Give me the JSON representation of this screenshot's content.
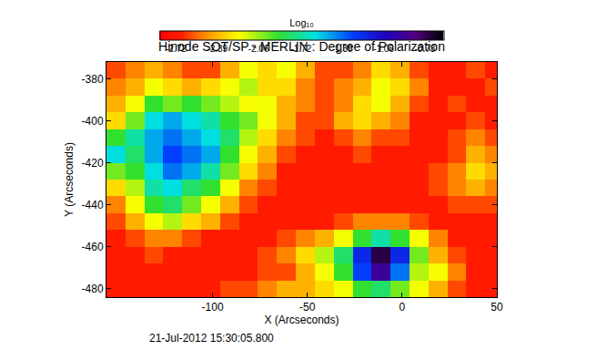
{
  "chart_data": {
    "type": "heatmap",
    "title": "Hinode SOT/SP - MERLIN : Degree of Polarization",
    "x_label": "X (Arcseconds)",
    "y_label": "Y (Arcseconds)",
    "annotation": "21-Jul-2012 15:30:05.800",
    "xlim": [
      -156,
      50
    ],
    "ylim": [
      -484,
      -372
    ],
    "xticks": [
      -100,
      -50,
      0,
      50
    ],
    "yticks": [
      -480,
      -460,
      -440,
      -420,
      -400,
      -380
    ],
    "x": [
      -151,
      -141,
      -131,
      -121,
      -111,
      -101,
      -91,
      -81,
      -71,
      -61,
      -51,
      -41,
      -31,
      -21,
      -11,
      -1,
      9,
      19,
      29,
      39,
      49
    ],
    "y": [
      -376,
      -384,
      -392,
      -400,
      -408,
      -416,
      -424,
      -432,
      -440,
      -448,
      -456,
      -464,
      -472,
      -480
    ],
    "z": [
      [
        -2.6,
        -2.5,
        -2.4,
        -2.5,
        -2.6,
        -2.6,
        -2.4,
        -2.2,
        -2.3,
        -2.2,
        -2.4,
        -2.6,
        -2.6,
        -2.5,
        -2.3,
        -2.4,
        -2.6,
        -2.7,
        -2.7,
        -2.6,
        -2.7
      ],
      [
        -2.5,
        -2.4,
        -2.2,
        -2.3,
        -2.4,
        -2.3,
        -2.2,
        -2.1,
        -2.3,
        -2.3,
        -2.5,
        -2.6,
        -2.5,
        -2.4,
        -2.2,
        -2.3,
        -2.5,
        -2.7,
        -2.7,
        -2.7,
        -2.6
      ],
      [
        -2.4,
        -2.2,
        -1.9,
        -2.0,
        -1.9,
        -2.0,
        -2.1,
        -2.2,
        -2.2,
        -2.4,
        -2.5,
        -2.6,
        -2.5,
        -2.3,
        -2.2,
        -2.4,
        -2.6,
        -2.7,
        -2.6,
        -2.7,
        -2.7
      ],
      [
        -2.3,
        -2.0,
        -1.6,
        -1.5,
        -1.6,
        -1.7,
        -1.9,
        -2.0,
        -2.2,
        -2.4,
        -2.6,
        -2.6,
        -2.4,
        -2.3,
        -2.4,
        -2.5,
        -2.7,
        -2.7,
        -2.7,
        -2.6,
        -2.7
      ],
      [
        -1.9,
        -1.7,
        -1.5,
        -1.4,
        -1.5,
        -1.6,
        -1.8,
        -2.1,
        -2.3,
        -2.5,
        -2.6,
        -2.7,
        -2.6,
        -2.5,
        -2.6,
        -2.6,
        -2.7,
        -2.7,
        -2.6,
        -2.5,
        -2.6
      ],
      [
        -1.6,
        -1.8,
        -1.5,
        -1.3,
        -1.4,
        -1.5,
        -1.9,
        -2.2,
        -2.4,
        -2.6,
        -2.7,
        -2.7,
        -2.7,
        -2.6,
        -2.7,
        -2.7,
        -2.7,
        -2.7,
        -2.6,
        -2.4,
        -2.5
      ],
      [
        -2.0,
        -1.9,
        -1.6,
        -1.4,
        -1.5,
        -1.7,
        -2.0,
        -2.3,
        -2.5,
        -2.7,
        -2.7,
        -2.7,
        -2.7,
        -2.7,
        -2.7,
        -2.7,
        -2.7,
        -2.6,
        -2.5,
        -2.3,
        -2.4
      ],
      [
        -2.3,
        -2.1,
        -1.7,
        -1.6,
        -1.8,
        -1.9,
        -2.2,
        -2.5,
        -2.6,
        -2.7,
        -2.7,
        -2.7,
        -2.7,
        -2.7,
        -2.7,
        -2.7,
        -2.7,
        -2.6,
        -2.5,
        -2.4,
        -2.5
      ],
      [
        -2.5,
        -2.2,
        -1.9,
        -1.8,
        -2.0,
        -2.2,
        -2.4,
        -2.6,
        -2.7,
        -2.7,
        -2.7,
        -2.7,
        -2.7,
        -2.7,
        -2.7,
        -2.7,
        -2.7,
        -2.7,
        -2.6,
        -2.6,
        -2.6
      ],
      [
        -2.6,
        -2.4,
        -2.2,
        -2.1,
        -2.3,
        -2.4,
        -2.6,
        -2.7,
        -2.7,
        -2.7,
        -2.7,
        -2.7,
        -2.6,
        -2.5,
        -2.5,
        -2.5,
        -2.6,
        -2.7,
        -2.7,
        -2.7,
        -2.7
      ],
      [
        -2.7,
        -2.6,
        -2.5,
        -2.5,
        -2.6,
        -2.7,
        -2.7,
        -2.7,
        -2.7,
        -2.6,
        -2.5,
        -2.4,
        -2.2,
        -1.9,
        -1.7,
        -1.9,
        -2.2,
        -2.5,
        -2.7,
        -2.7,
        -2.7
      ],
      [
        -2.7,
        -2.7,
        -2.6,
        -2.7,
        -2.7,
        -2.7,
        -2.7,
        -2.7,
        -2.6,
        -2.5,
        -2.3,
        -2.1,
        -1.8,
        -1.2,
        -0.7,
        -1.2,
        -2.0,
        -2.4,
        -2.6,
        -2.7,
        -2.7
      ],
      [
        -2.7,
        -2.7,
        -2.7,
        -2.7,
        -2.7,
        -2.7,
        -2.7,
        -2.7,
        -2.6,
        -2.6,
        -2.4,
        -2.2,
        -1.9,
        -1.3,
        -0.9,
        -1.4,
        -2.1,
        -2.2,
        -2.5,
        -2.7,
        -2.7
      ],
      [
        -2.7,
        -2.7,
        -2.7,
        -2.7,
        -2.7,
        -2.7,
        -2.6,
        -2.6,
        -2.5,
        -2.4,
        -2.4,
        -2.3,
        -2.2,
        -1.9,
        -1.8,
        -2.0,
        -2.2,
        -2.4,
        -2.6,
        -2.7,
        -2.7
      ]
    ],
    "colorbar": {
      "title": "Log₁₀",
      "range": [
        -2.85,
        -0.58
      ],
      "ticks": [
        -2.72,
        -2.39,
        -2.06,
        -1.72,
        -1.39,
        -1.06,
        -0.73
      ]
    }
  }
}
